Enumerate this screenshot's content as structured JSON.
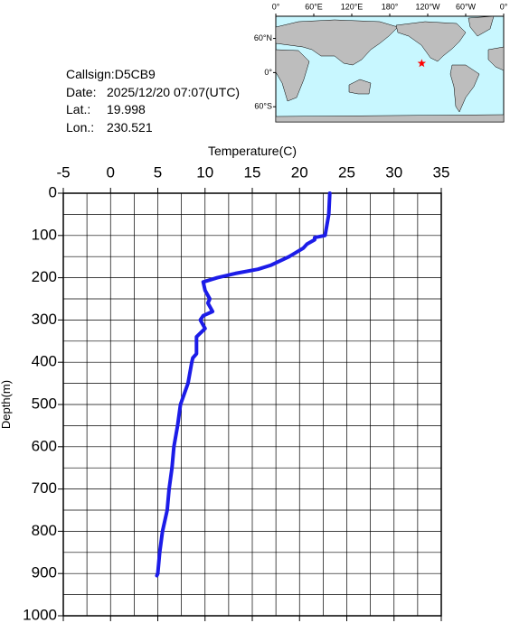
{
  "info": {
    "callsign_label": "Callsign:",
    "callsign": "D5CB9",
    "date_label": "Date:",
    "date": "2025/12/20 07:07(UTC)",
    "lat_label": "Lat.:",
    "lat": 19.998,
    "lon_label": "Lon.:",
    "lon": 230.521
  },
  "map": {
    "lonlim": [
      0,
      360
    ],
    "latlim": [
      -73,
      77
    ],
    "lon_labels": [
      {
        "value": 0,
        "label": "0°"
      },
      {
        "value": 60,
        "label": "60°E"
      },
      {
        "value": 120,
        "label": "120°E"
      },
      {
        "value": 180,
        "label": "180°"
      },
      {
        "value": 240,
        "label": "120°W"
      },
      {
        "value": 300,
        "label": "60°W"
      },
      {
        "value": 360,
        "label": "0°"
      }
    ],
    "lat_labels": [
      {
        "value": 60,
        "label": "60°N"
      },
      {
        "value": 0,
        "label": "0°"
      },
      {
        "value": -60,
        "label": "60°S"
      }
    ]
  },
  "chart_data": {
    "type": "line",
    "x_label": "Temperature(C)",
    "y_label": "Depth(m)",
    "xlim": [
      -5,
      35
    ],
    "xticks": [
      -5,
      0,
      5,
      10,
      15,
      20,
      25,
      30,
      35
    ],
    "ylim": [
      0,
      1000
    ],
    "yticks": [
      0,
      100,
      200,
      300,
      400,
      500,
      600,
      700,
      800,
      900,
      1000
    ],
    "y_inverted": true,
    "grid": true,
    "series": [
      {
        "color": "#1c1ce8",
        "x": [
          23.2,
          23.1,
          22.7,
          21.6,
          21.6,
          20.8,
          20.4,
          18.9,
          17.0,
          15.6,
          13.2,
          11.3,
          9.8,
          10.0,
          10.5,
          10.3,
          10.8,
          9.8,
          9.5,
          10.0,
          9.1,
          9.1,
          8.7,
          8.6,
          8.2,
          7.4,
          7.1,
          6.7,
          6.5,
          6.2,
          6.0,
          5.5,
          5.2,
          5.0,
          4.9
        ],
        "y": [
          0,
          50,
          100,
          105,
          110,
          120,
          130,
          150,
          170,
          180,
          190,
          200,
          210,
          230,
          250,
          260,
          280,
          290,
          300,
          320,
          340,
          380,
          390,
          400,
          450,
          500,
          550,
          600,
          650,
          700,
          750,
          800,
          850,
          900,
          905
        ]
      }
    ]
  }
}
